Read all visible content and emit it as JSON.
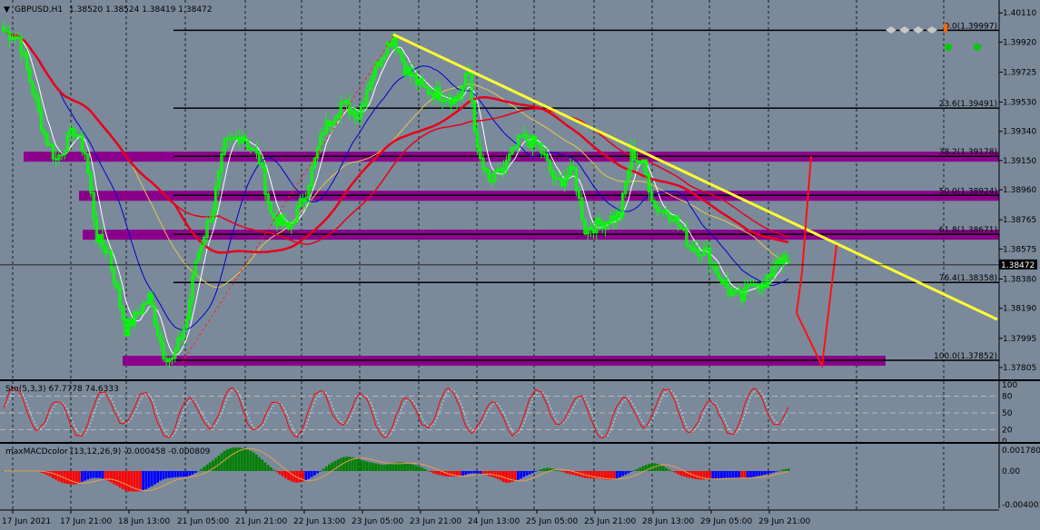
{
  "window": {
    "title": "GBPUSD,H1",
    "ohlc": "1.38520 1.38524 1.38419 1.38472"
  },
  "colors": {
    "background": "#7a8a9b",
    "gridline": "#000000",
    "candle": "#00ff00",
    "ma_red": "#e8001c",
    "ma_blue": "#0000d0",
    "ma_yellow": "#e6c84a",
    "ma_white": "#ffffff",
    "trendline": "#ffff33",
    "fib_zone": "#8b008b",
    "macd_blue": "#0000ff",
    "macd_red": "#ff0000",
    "macd_green": "#008000",
    "stoch": "#ff0000"
  },
  "price_axis": {
    "labels": [
      "1.40110",
      "1.39920",
      "1.39725",
      "1.39530",
      "1.39340",
      "1.39150",
      "1.38960",
      "1.38765",
      "1.38575",
      "1.38380",
      "1.38190",
      "1.37995",
      "1.37805"
    ],
    "min": 1.3774,
    "max": 1.4017,
    "current_price": "1.38472",
    "current_value": 1.38472
  },
  "time_axis": {
    "labels": [
      "17 Jun 2021",
      "17 Jun 21:00",
      "18 Jun 13:00",
      "21 Jun 05:00",
      "21 Jun 21:00",
      "22 Jun 13:00",
      "23 Jun 05:00",
      "23 Jun 21:00",
      "24 Jun 13:00",
      "25 Jun 05:00",
      "25 Jun 21:00",
      "28 Jun 13:00",
      "29 Jun 05:00",
      "29 Jun 21:00"
    ]
  },
  "fibonacci": [
    {
      "label": "0.0(1.39997)",
      "value": 1.39997
    },
    {
      "label": "23.6(1.39491)",
      "value": 1.39491
    },
    {
      "label": "38.2(1.39178)",
      "value": 1.39178
    },
    {
      "label": "50.0(1.38924)",
      "value": 1.38924
    },
    {
      "label": "61.8(1.38671)",
      "value": 1.38671
    },
    {
      "label": "76.4(1.38358)",
      "value": 1.38358
    },
    {
      "label": "100.0(1.37852)",
      "value": 1.37852
    }
  ],
  "stochastic": {
    "label": "Sto(5,3,3) 67.7778 74.6333",
    "levels": [
      "100",
      "80",
      "50",
      "20",
      "0"
    ]
  },
  "macd": {
    "label": "maxMACDcolor (13,12,26,9) -0.000458 -0.000809",
    "axis_labels": [
      "0.001780",
      "0.00",
      "-0.004001"
    ]
  },
  "chart_data": {
    "type": "candlestick",
    "title": "GBPUSD,H1",
    "ylim": [
      1.3774,
      1.4017
    ],
    "anchors": [
      {
        "t": 0,
        "p": 1.3999
      },
      {
        "t": 5,
        "p": 1.3995
      },
      {
        "t": 10,
        "p": 1.396
      },
      {
        "t": 14,
        "p": 1.3932
      },
      {
        "t": 18,
        "p": 1.3915
      },
      {
        "t": 24,
        "p": 1.3935
      },
      {
        "t": 28,
        "p": 1.392
      },
      {
        "t": 32,
        "p": 1.3865
      },
      {
        "t": 36,
        "p": 1.3855
      },
      {
        "t": 42,
        "p": 1.3805
      },
      {
        "t": 50,
        "p": 1.3826
      },
      {
        "t": 55,
        "p": 1.379
      },
      {
        "t": 58,
        "p": 1.3785
      },
      {
        "t": 63,
        "p": 1.3812
      },
      {
        "t": 66,
        "p": 1.385
      },
      {
        "t": 72,
        "p": 1.3885
      },
      {
        "t": 76,
        "p": 1.3925
      },
      {
        "t": 82,
        "p": 1.3932
      },
      {
        "t": 88,
        "p": 1.3915
      },
      {
        "t": 92,
        "p": 1.388
      },
      {
        "t": 98,
        "p": 1.387
      },
      {
        "t": 104,
        "p": 1.3895
      },
      {
        "t": 110,
        "p": 1.3935
      },
      {
        "t": 116,
        "p": 1.3952
      },
      {
        "t": 122,
        "p": 1.3945
      },
      {
        "t": 126,
        "p": 1.3968
      },
      {
        "t": 131,
        "p": 1.3988
      },
      {
        "t": 134,
        "p": 1.3996
      },
      {
        "t": 138,
        "p": 1.3975
      },
      {
        "t": 144,
        "p": 1.3962
      },
      {
        "t": 150,
        "p": 1.3958
      },
      {
        "t": 156,
        "p": 1.3955
      },
      {
        "t": 160,
        "p": 1.3972
      },
      {
        "t": 163,
        "p": 1.392
      },
      {
        "t": 167,
        "p": 1.39
      },
      {
        "t": 172,
        "p": 1.391
      },
      {
        "t": 178,
        "p": 1.393
      },
      {
        "t": 184,
        "p": 1.3925
      },
      {
        "t": 190,
        "p": 1.39
      },
      {
        "t": 196,
        "p": 1.3908
      },
      {
        "t": 200,
        "p": 1.387
      },
      {
        "t": 206,
        "p": 1.3875
      },
      {
        "t": 212,
        "p": 1.388
      },
      {
        "t": 216,
        "p": 1.392
      },
      {
        "t": 220,
        "p": 1.3912
      },
      {
        "t": 224,
        "p": 1.3885
      },
      {
        "t": 230,
        "p": 1.388
      },
      {
        "t": 236,
        "p": 1.386
      },
      {
        "t": 242,
        "p": 1.3855
      },
      {
        "t": 246,
        "p": 1.384
      },
      {
        "t": 250,
        "p": 1.383
      },
      {
        "t": 254,
        "p": 1.3825
      },
      {
        "t": 258,
        "p": 1.3838
      },
      {
        "t": 262,
        "p": 1.3832
      },
      {
        "t": 266,
        "p": 1.3852
      },
      {
        "t": 270,
        "p": 1.3847
      }
    ]
  }
}
